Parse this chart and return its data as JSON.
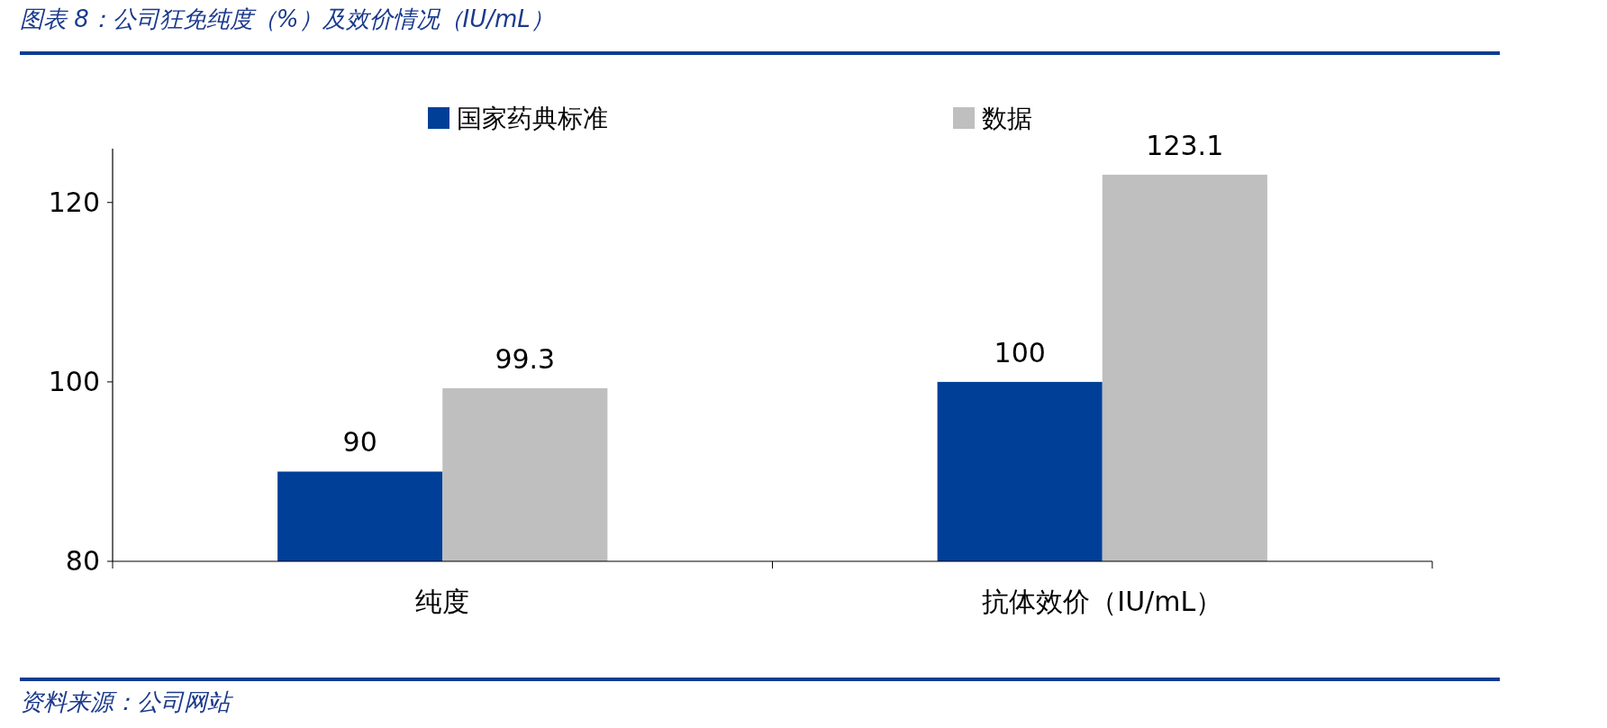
{
  "chart_data": {
    "type": "bar",
    "title": "图表 8：公司狂免纯度（%）及效价情况（IU/mL）",
    "categories": [
      "纯度",
      "抗体效价（IU/mL）"
    ],
    "series": [
      {
        "name": "国家药典标准",
        "color": "#003f98",
        "values": [
          90,
          100
        ]
      },
      {
        "name": "数据",
        "color": "#bfbfbf",
        "values": [
          99.3,
          123.1
        ]
      }
    ],
    "ylim": [
      80,
      126
    ],
    "yticks": [
      80,
      100,
      120
    ],
    "grid": false,
    "legend": "top",
    "data_labels": true,
    "annotations": [
      "资料来源：公司网站"
    ]
  }
}
